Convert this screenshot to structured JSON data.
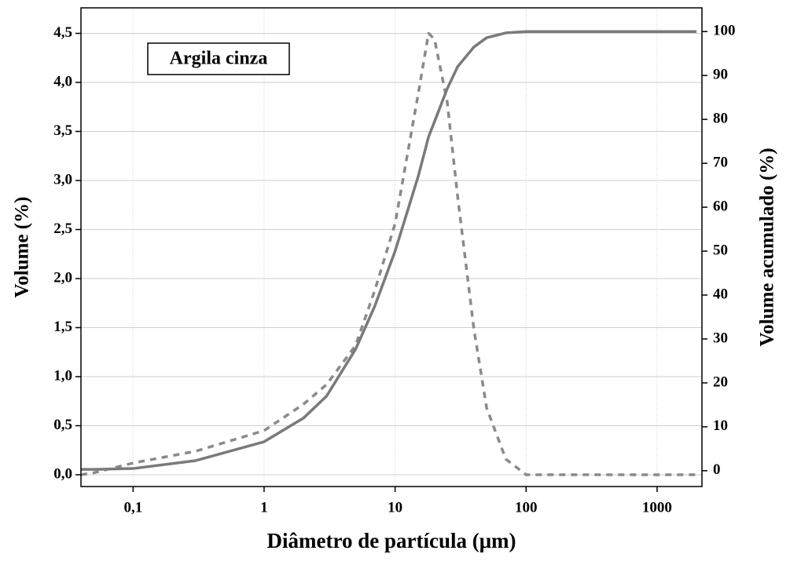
{
  "chart_data": {
    "type": "line",
    "xlabel": "Diâmetro de partícula (μm)",
    "ylabel": "Volume (%)",
    "y2label": "Volume acumulado (%)",
    "annotations": [
      {
        "text": "Argila cinza"
      }
    ],
    "xscale": "log",
    "grid": true,
    "x": [
      0.04,
      0.05,
      0.1,
      0.3,
      1,
      2,
      3,
      5,
      7,
      10,
      15,
      18,
      20,
      25,
      30,
      40,
      50,
      70,
      100,
      200,
      500,
      1000,
      2000
    ],
    "series": [
      {
        "color": "#8a8a8a",
        "dash": true,
        "axis": "y",
        "values": [
          0,
          0.02,
          0.12,
          0.24,
          0.45,
          0.72,
          0.92,
          1.32,
          1.88,
          2.56,
          3.88,
          4.5,
          4.44,
          3.8,
          2.84,
          1.48,
          0.68,
          0.16,
          0,
          0,
          0,
          0,
          0
        ]
      },
      {
        "color": "#7a7a7a",
        "dash": false,
        "axis": "y2",
        "values": [
          0.3,
          0.3,
          0.5,
          2.3,
          6.6,
          12,
          17,
          27.7,
          37.5,
          50,
          67,
          76,
          79.5,
          87,
          92,
          96.5,
          98.6,
          99.7,
          100,
          100,
          100,
          100,
          100
        ]
      }
    ],
    "xlim": [
      0.04,
      2200
    ],
    "xticks": [
      {
        "value": 0.1,
        "label": "0,1"
      },
      1,
      10,
      100,
      1000
    ],
    "ylim": [
      -0.12,
      4.76
    ],
    "yticks": [
      {
        "value": 0,
        "label": "0,0"
      },
      {
        "value": 0.5,
        "label": "0,5"
      },
      {
        "value": 1,
        "label": "1,0"
      },
      {
        "value": 1.5,
        "label": "1,5"
      },
      {
        "value": 2,
        "label": "2,0"
      },
      {
        "value": 2.5,
        "label": "2,5"
      },
      {
        "value": 3,
        "label": "3,0"
      },
      {
        "value": 3.5,
        "label": "3,5"
      },
      {
        "value": 4,
        "label": "4,0"
      },
      {
        "value": 4.5,
        "label": "4,5"
      }
    ],
    "y2lim": [
      -3.6,
      105.4
    ],
    "y2ticks": [
      0,
      10,
      20,
      30,
      40,
      50,
      60,
      70,
      80,
      90,
      100
    ]
  }
}
